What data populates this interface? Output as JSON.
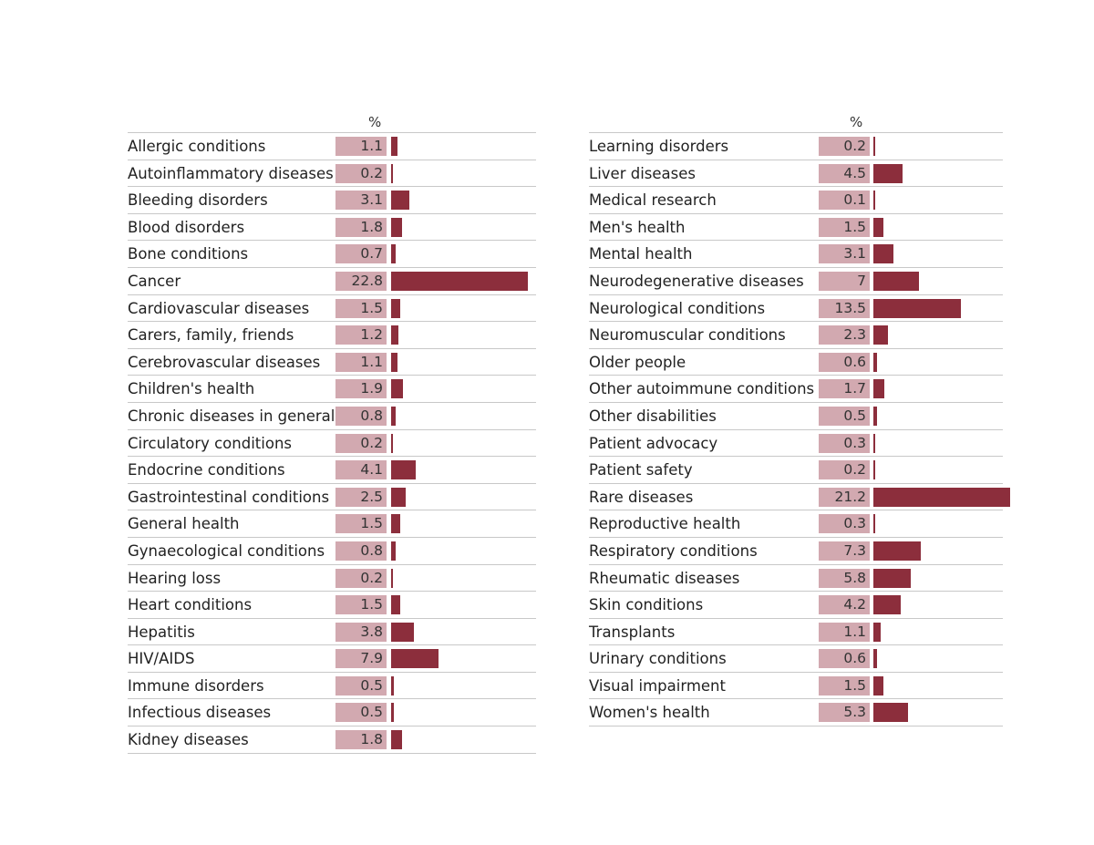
{
  "chart_data": [
    {
      "type": "bar",
      "orientation": "horizontal",
      "value_header": "%",
      "xlim": [
        0,
        22.8
      ],
      "categories": [
        "Allergic conditions",
        "Autoinflammatory diseases",
        "Bleeding disorders",
        "Blood disorders",
        "Bone conditions",
        "Cancer",
        "Cardiovascular diseases",
        "Carers, family, friends",
        "Cerebrovascular diseases",
        "Children's health",
        "Chronic diseases in general",
        "Circulatory conditions",
        "Endocrine conditions",
        "Gastrointestinal conditions",
        "General health",
        "Gynaecological conditions",
        "Hearing loss",
        "Heart conditions",
        "Hepatitis",
        "HIV/AIDS",
        "Immune disorders",
        "Infectious diseases",
        "Kidney diseases"
      ],
      "values": [
        1.1,
        0.2,
        3.1,
        1.8,
        0.7,
        22.8,
        1.5,
        1.2,
        1.1,
        1.9,
        0.8,
        0.2,
        4.1,
        2.5,
        1.5,
        0.8,
        0.2,
        1.5,
        3.8,
        7.9,
        0.5,
        0.5,
        1.8
      ],
      "colors": {
        "value_box": "#d2a9b0",
        "bar": "#8c2e3c"
      }
    },
    {
      "type": "bar",
      "orientation": "horizontal",
      "value_header": "%",
      "xlim": [
        0,
        21.2
      ],
      "categories": [
        "Learning disorders",
        "Liver diseases",
        "Medical research",
        "Men's health",
        "Mental health",
        "Neurodegenerative diseases",
        "Neurological conditions",
        "Neuromuscular conditions",
        "Older people",
        "Other autoimmune conditions",
        "Other disabilities",
        "Patient advocacy",
        "Patient safety",
        "Rare diseases",
        "Reproductive health",
        "Respiratory conditions",
        "Rheumatic diseases",
        "Skin conditions",
        "Transplants",
        "Urinary conditions",
        "Visual impairment",
        "Women's health"
      ],
      "values": [
        0.2,
        4.5,
        0.1,
        1.5,
        3.1,
        7,
        13.5,
        2.3,
        0.6,
        1.7,
        0.5,
        0.3,
        0.2,
        21.2,
        0.3,
        7.3,
        5.8,
        4.2,
        1.1,
        0.6,
        1.5,
        5.3
      ],
      "colors": {
        "value_box": "#d2a9b0",
        "bar": "#8c2e3c"
      }
    }
  ]
}
